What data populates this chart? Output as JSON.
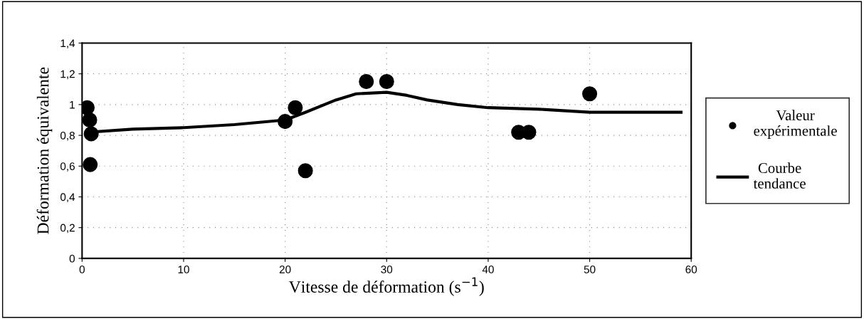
{
  "chart_data": {
    "type": "scatter",
    "xlabel": "Vitesse de déformation (s$^{−1}$)",
    "ylabel": "Déformation équivalente",
    "xlim": [
      0,
      60
    ],
    "xticks": [
      0,
      10,
      20,
      30,
      40,
      50,
      60
    ],
    "ylim": [
      0,
      1.4
    ],
    "yticks": [
      0,
      {
        "value": 0.2,
        "label": "0,2"
      },
      {
        "value": 0.4,
        "label": "0,4"
      },
      {
        "value": 0.6,
        "label": "0,6"
      },
      {
        "value": 0.8,
        "label": "0,8"
      },
      {
        "value": 1,
        "label": "1"
      },
      {
        "value": 1.2,
        "label": "1,2"
      },
      {
        "value": 1.4,
        "label": "1,4"
      }
    ],
    "grid": true,
    "legend": "right",
    "series": [
      {
        "name": "Valeur expérimentale",
        "marker": "circle",
        "color": "#000000",
        "x": [
          0.5,
          0.75,
          0.9,
          0.8,
          20,
          21,
          22,
          28,
          30,
          43,
          44,
          50
        ],
        "values": [
          0.98,
          0.9,
          0.81,
          0.61,
          0.89,
          0.98,
          0.57,
          1.15,
          1.15,
          0.82,
          0.82,
          1.07
        ]
      },
      {
        "name": "Courbe tendance",
        "type": "line",
        "line_style": "solid",
        "color": "#000000",
        "x": [
          0.5,
          5,
          10,
          15,
          20,
          22,
          25,
          27,
          30,
          32,
          34,
          37,
          40,
          45,
          50,
          52,
          59
        ],
        "values": [
          0.82,
          0.84,
          0.85,
          0.87,
          0.9,
          0.95,
          1.03,
          1.07,
          1.08,
          1.06,
          1.03,
          1.0,
          0.98,
          0.97,
          0.95,
          0.95,
          0.95
        ]
      }
    ]
  }
}
